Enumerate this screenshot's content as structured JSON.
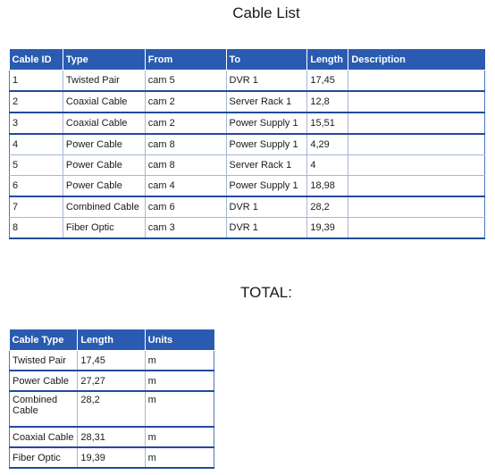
{
  "title": "Cable List",
  "cable_table": {
    "headers": [
      "Cable ID",
      "Type",
      "From",
      "To",
      "Length",
      "Description"
    ],
    "rows": [
      [
        "1",
        "Twisted Pair",
        "cam 5",
        "DVR 1",
        "17,45",
        ""
      ],
      [
        "2",
        "Coaxial Cable",
        "cam 2",
        "Server Rack 1",
        "12,8",
        ""
      ],
      [
        "3",
        "Coaxial Cable",
        "cam 2",
        "Power Supply 1",
        "15,51",
        ""
      ],
      [
        "4",
        "Power Cable",
        "cam 8",
        "Power Supply 1",
        "4,29",
        ""
      ],
      [
        "5",
        "Power Cable",
        "cam 8",
        "Server Rack 1",
        "4",
        ""
      ],
      [
        "6",
        "Power Cable",
        "cam 4",
        "Power Supply 1",
        "18,98",
        ""
      ],
      [
        "7",
        "Combined Cable",
        "cam 6",
        "DVR 1",
        "28,2",
        ""
      ],
      [
        "8",
        "Fiber Optic",
        "cam 3",
        "DVR 1",
        "19,39",
        ""
      ]
    ]
  },
  "total_title": "TOTAL:",
  "total_table": {
    "headers": [
      "Cable Type",
      "Length",
      "Units"
    ],
    "rows": [
      [
        "Twisted Pair",
        "17,45",
        "m"
      ],
      [
        "Power Cable",
        "27,27",
        "m"
      ],
      [
        "Combined Cable",
        "28,2",
        "m"
      ],
      [
        "Coaxial Cable",
        "28,31",
        "m"
      ],
      [
        "Fiber Optic",
        "19,39",
        "m"
      ]
    ]
  }
}
